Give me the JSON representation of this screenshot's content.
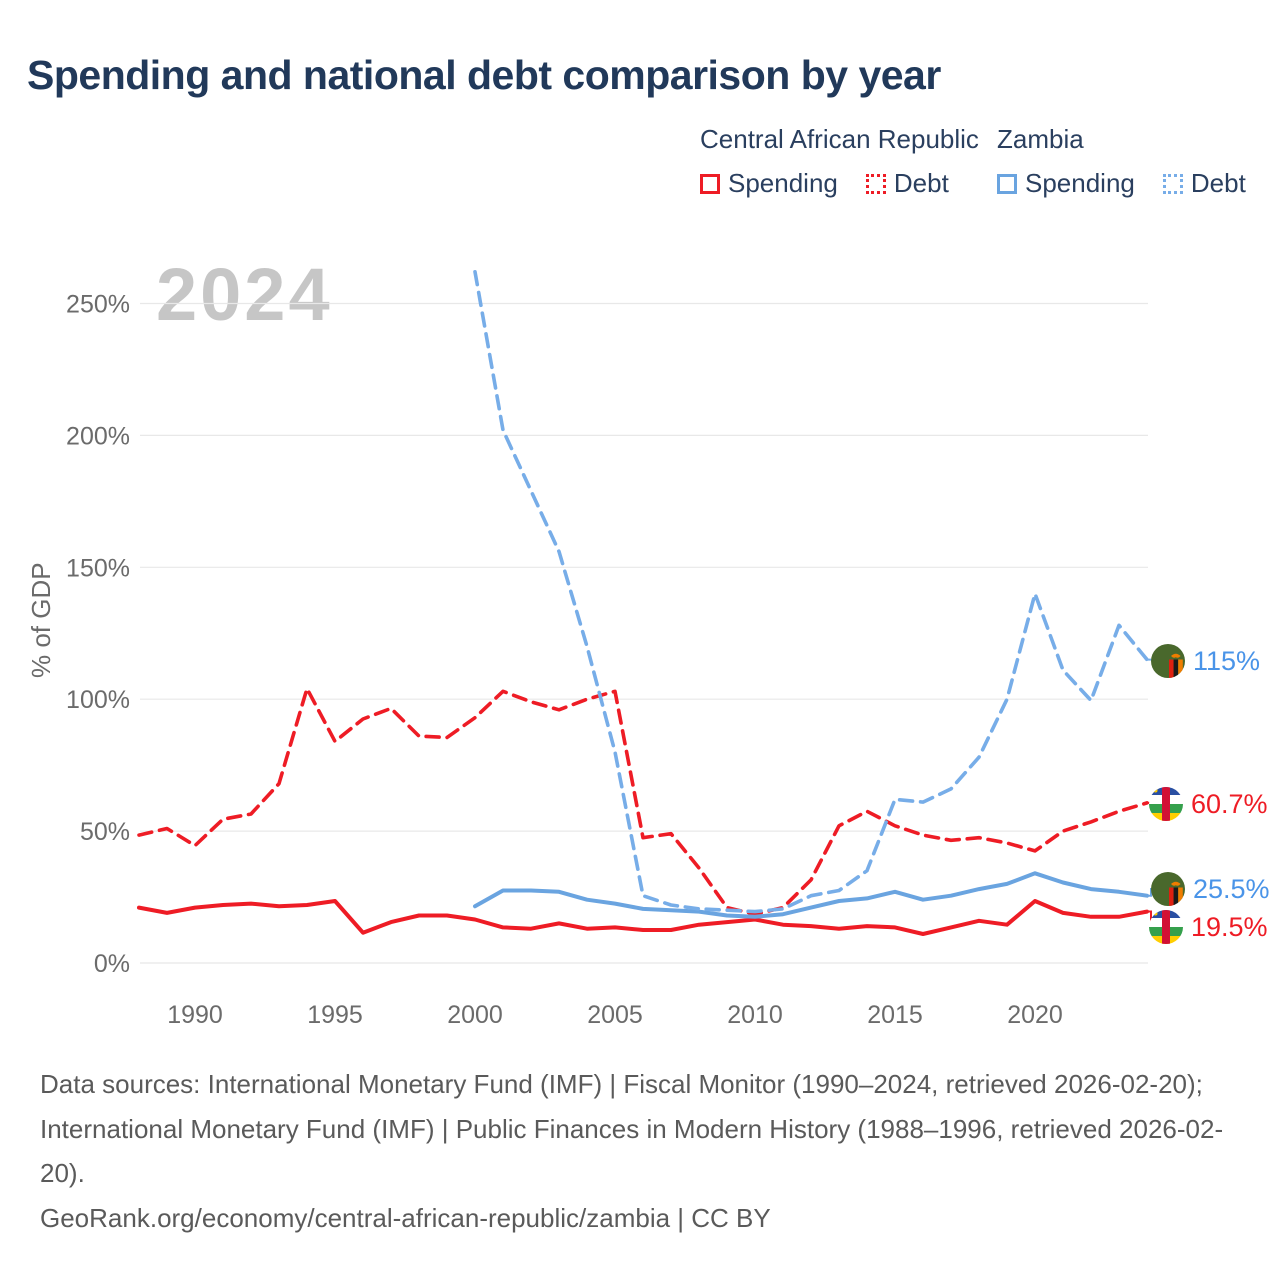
{
  "title": "Spending and national debt comparison by year",
  "watermark": "2024",
  "legend": {
    "groups": [
      {
        "country": "Central African Republic",
        "items": [
          {
            "label": "Spending",
            "style": "solid",
            "color": "#ee1c25"
          },
          {
            "label": "Debt",
            "style": "dotted",
            "color": "#ee1c25"
          }
        ]
      },
      {
        "country": "Zambia",
        "items": [
          {
            "label": "Spending",
            "style": "solid",
            "color": "#6aa4e0"
          },
          {
            "label": "Debt",
            "style": "dotted",
            "color": "#77ade8"
          }
        ]
      }
    ]
  },
  "chart_data": {
    "type": "line",
    "title": "Spending and national debt comparison by year",
    "ylabel": "% of GDP",
    "xlabel": "",
    "grid": true,
    "xrange": [
      1988,
      2024
    ],
    "ylim": [
      0,
      262
    ],
    "yticks": [
      {
        "value": 0,
        "label": "0%"
      },
      {
        "value": 50,
        "label": "50%"
      },
      {
        "value": 100,
        "label": "100%"
      },
      {
        "value": 150,
        "label": "150%"
      },
      {
        "value": 200,
        "label": "200%"
      },
      {
        "value": 250,
        "label": "250%"
      }
    ],
    "xticks": [
      1990,
      1995,
      2000,
      2005,
      2010,
      2015,
      2020
    ],
    "series": [
      {
        "key": "car_spending",
        "name": "Central African Republic Spending",
        "color": "#ee1c25",
        "dash": "solid",
        "start_year": 1988,
        "values": [
          21,
          19,
          21,
          22,
          22.5,
          21.5,
          22,
          23.5,
          11.5,
          15.5,
          18,
          18,
          16.5,
          13.5,
          13,
          15,
          13,
          13.5,
          12.5,
          12.5,
          14.5,
          15.5,
          16.5,
          14.5,
          14,
          13,
          14,
          13.5,
          11,
          13.5,
          16,
          14.5,
          23.5,
          19,
          17.5,
          17.5,
          19.5
        ]
      },
      {
        "key": "car_debt",
        "name": "Central African Republic Debt",
        "color": "#ee1c25",
        "dash": "dashed",
        "start_year": 1988,
        "values": [
          48.5,
          51,
          44.5,
          54.5,
          56.5,
          68,
          104,
          84,
          92.5,
          96.5,
          86,
          85.5,
          93,
          103,
          99,
          96,
          100,
          103,
          47.5,
          49,
          36,
          21,
          18.5,
          21,
          31.5,
          52,
          57.5,
          52,
          48.5,
          46.5,
          47.5,
          45.5,
          42.5,
          50,
          53.5,
          57.5,
          60.7
        ]
      },
      {
        "key": "zambia_spending",
        "name": "Zambia Spending",
        "color": "#6aa4e0",
        "dash": "solid",
        "start_year": 2000,
        "values": [
          21.5,
          27.5,
          27.5,
          27,
          24,
          22.5,
          20.5,
          20,
          19.5,
          18,
          17.5,
          18.5,
          21,
          23.5,
          24.5,
          27,
          24,
          25.5,
          28,
          30,
          34,
          30.5,
          28,
          27,
          25.5
        ]
      },
      {
        "key": "zambia_debt",
        "name": "Zambia Debt",
        "color": "#77ade8",
        "dash": "dashed",
        "start_year": 2000,
        "values": [
          262,
          202,
          179,
          156,
          120,
          80,
          25.5,
          22,
          20.5,
          20,
          19.5,
          20.5,
          25.5,
          27.5,
          35,
          62,
          61,
          66,
          78,
          100,
          140,
          111,
          99.5,
          128,
          115
        ]
      }
    ],
    "end_labels": [
      {
        "series": "zambia_debt",
        "text": "115%",
        "flag": "zambia"
      },
      {
        "series": "car_debt",
        "text": "60.7%",
        "flag": "central-african-republic"
      },
      {
        "series": "zambia_spending",
        "text": "25.5%",
        "flag": "zambia"
      },
      {
        "series": "car_spending",
        "text": "19.5%",
        "flag": "central-african-republic"
      }
    ]
  },
  "footer": {
    "sources": "Data sources: International Monetary Fund (IMF) | Fiscal Monitor (1990–2024, retrieved 2026-02-20); International Monetary Fund (IMF) | Public Finances in Modern History (1988–1996, retrieved 2026-02-20).",
    "attribution": "GeoRank.org/economy/central-african-republic/zambia | CC BY"
  }
}
